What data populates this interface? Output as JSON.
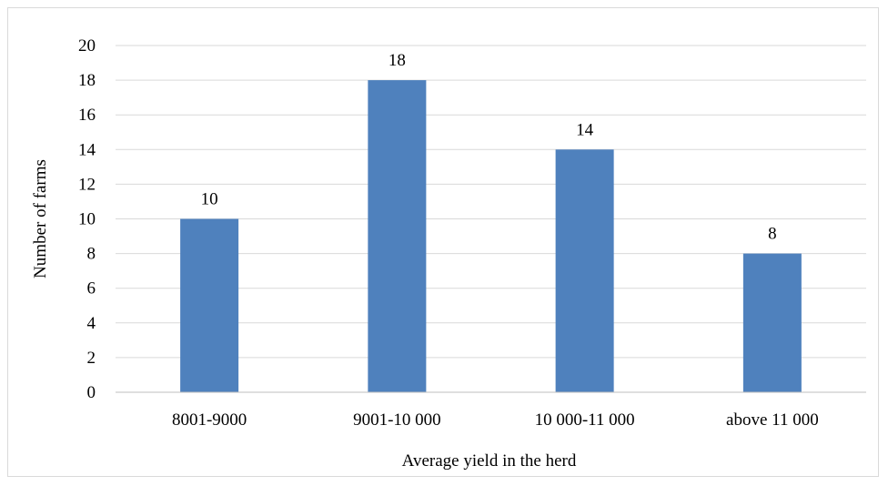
{
  "chart_data": {
    "type": "bar",
    "categories": [
      "8001-9000",
      "9001-10 000",
      "10 000-11 000",
      "above 11 000"
    ],
    "values": [
      10,
      18,
      14,
      8
    ],
    "title": "",
    "xlabel": "Average yield in the herd",
    "ylabel": "Number of farms",
    "ylim": [
      0,
      20
    ],
    "yticks": [
      0,
      2,
      4,
      6,
      8,
      10,
      12,
      14,
      16,
      18,
      20
    ],
    "grid": "horizontal",
    "legend": "none",
    "colors": {
      "bar": "#4F81BD",
      "grid": "#d9d9d9",
      "axis": "#bfbfbf",
      "text": "#000000"
    }
  }
}
